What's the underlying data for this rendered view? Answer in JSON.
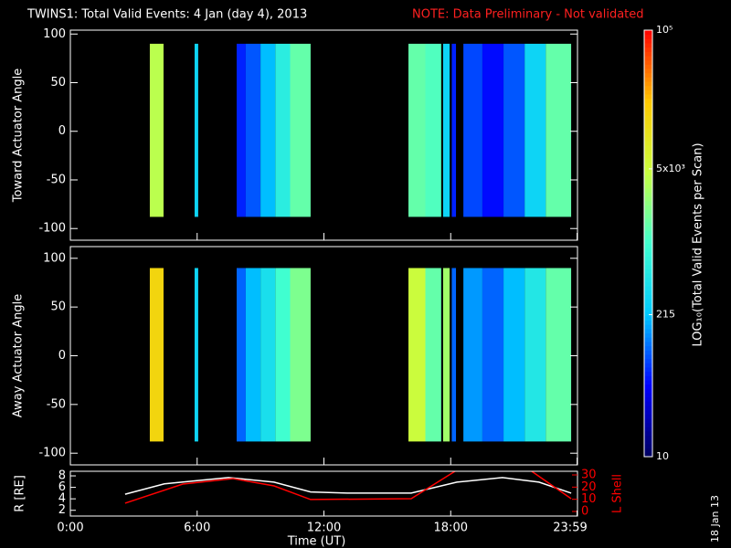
{
  "title": "TWINS1: Total Valid Events:  4 Jan (day   4), 2013",
  "note": "NOTE: Data Preliminary - Not validated",
  "date_stamp": "18 Jan 13",
  "colorbar": {
    "label": "LOG₁₀(Total Valid Events per Scan)",
    "log": true,
    "lim": [
      10,
      100000
    ],
    "ticks": [
      {
        "value": 10,
        "label": "10"
      },
      {
        "value": 215,
        "label": "215"
      },
      {
        "value": 5000,
        "label": "5x10³"
      },
      {
        "value": 100000,
        "label": "10⁵"
      }
    ],
    "colormap": [
      "#000060",
      "#0000ff",
      "#00c8ff",
      "#40ffd0",
      "#c8ff40",
      "#ffc800",
      "#ff0000"
    ]
  },
  "chart_data": [
    {
      "type": "heatmap",
      "ylabel": "Toward Actuator Angle",
      "xlim": [
        0,
        24
      ],
      "ylim": [
        -112,
        104
      ],
      "yticks": [
        -100,
        -50,
        0,
        50,
        100
      ],
      "angle_range": [
        -88,
        90
      ],
      "intervals": [
        [
          3.76,
          4.41
        ],
        [
          5.88,
          6.05
        ],
        [
          7.87,
          8.3
        ],
        [
          8.3,
          9.0
        ],
        [
          9.0,
          9.7
        ],
        [
          9.7,
          10.4
        ],
        [
          10.4,
          11.37
        ],
        [
          16.0,
          16.8
        ],
        [
          16.8,
          17.55
        ],
        [
          17.64,
          17.95
        ],
        [
          18.05,
          18.25
        ],
        [
          18.6,
          19.5
        ],
        [
          19.5,
          20.5
        ],
        [
          20.5,
          21.5
        ],
        [
          21.5,
          22.5
        ],
        [
          22.5,
          23.7
        ]
      ],
      "values": [
        4000,
        300,
        60,
        90,
        200,
        600,
        1500,
        1500,
        1200,
        300,
        60,
        80,
        50,
        90,
        300,
        1500
      ]
    },
    {
      "type": "heatmap",
      "ylabel": "Away Actuator Angle",
      "xlim": [
        0,
        24
      ],
      "ylim": [
        -112,
        112
      ],
      "yticks": [
        -100,
        -50,
        0,
        50,
        100
      ],
      "angle_range": [
        -88,
        90
      ],
      "intervals": [
        [
          3.76,
          4.41
        ],
        [
          5.88,
          6.05
        ],
        [
          7.87,
          8.3
        ],
        [
          8.3,
          9.0
        ],
        [
          9.0,
          9.7
        ],
        [
          9.7,
          10.4
        ],
        [
          10.4,
          11.37
        ],
        [
          16.0,
          16.8
        ],
        [
          16.8,
          17.55
        ],
        [
          17.64,
          17.95
        ],
        [
          18.05,
          18.25
        ],
        [
          18.6,
          19.5
        ],
        [
          19.5,
          20.5
        ],
        [
          20.5,
          21.5
        ],
        [
          21.5,
          22.5
        ],
        [
          22.5,
          23.7
        ]
      ],
      "values": [
        15000,
        300,
        100,
        200,
        400,
        1000,
        2000,
        5000,
        1500,
        3000,
        100,
        150,
        100,
        200,
        500,
        1500
      ]
    },
    {
      "type": "line",
      "xlabel": "Time (UT)",
      "xlim": [
        0,
        24
      ],
      "xticks": [
        {
          "value": 0,
          "label": "0:00"
        },
        {
          "value": 6,
          "label": "6:00"
        },
        {
          "value": 12,
          "label": "12:00"
        },
        {
          "value": 18,
          "label": "18:00"
        },
        {
          "value": 23.98,
          "label": "23:59"
        }
      ],
      "ylim": [
        1,
        8.8
      ],
      "yticks": [
        2,
        4,
        6,
        8
      ],
      "y2lim": [
        -3.75,
        33
      ],
      "y2ticks": [
        0,
        10,
        20,
        30
      ],
      "series": [
        {
          "name": "R [RE]",
          "color": "#ffffff",
          "x": [
            2.59,
            4.45,
            7.48,
            9.64,
            11.37,
            13.1,
            16.13,
            18.29,
            20.45,
            22.18,
            23.7
          ],
          "values": [
            4.8,
            6.6,
            7.7,
            6.9,
            5.2,
            5.0,
            5.0,
            6.9,
            7.7,
            6.9,
            5.0
          ]
        },
        {
          "name": "L Shell",
          "color": "#ff0000",
          "axis": "y2",
          "x": [
            2.59,
            5.32,
            7.7,
            9.64,
            11.37,
            16.13,
            18.29,
            20.0,
            21.75,
            23.7
          ],
          "values": [
            6.8,
            22.5,
            27,
            21,
            9.8,
            10.5,
            34,
            null,
            34,
            10.5
          ]
        }
      ]
    }
  ]
}
